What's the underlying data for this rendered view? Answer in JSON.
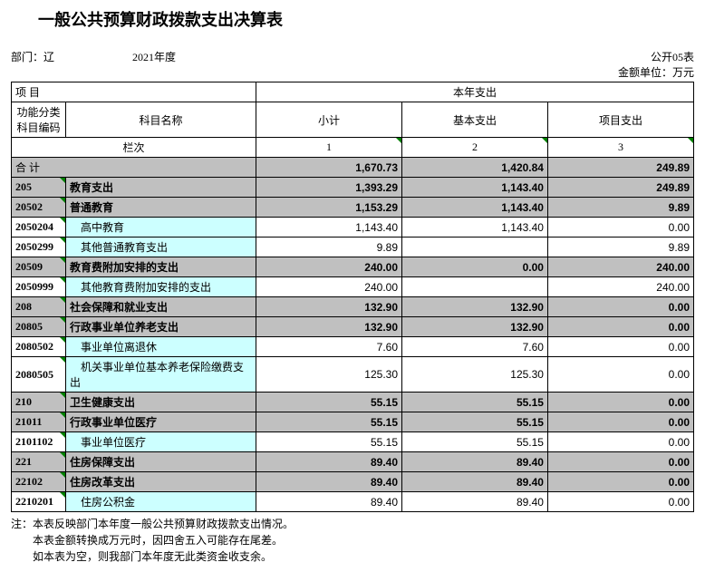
{
  "title": "一般公共预算财政拨款支出决算表",
  "form_number": "公开05表",
  "dept_label": "部门：辽",
  "year_label": "2021年度",
  "unit_label": "金额单位：万元",
  "headers": {
    "xiangmu": "项                                                                               目",
    "benian": "本年支出",
    "func_code": "功能分类科目编码",
    "name": "科目名称",
    "subtotal": "小计",
    "basic": "基本支出",
    "project": "项目支出",
    "lanci": "栏次",
    "col1": "1",
    "col2": "2",
    "col3": "3",
    "heji": "合                                                                               计"
  },
  "rows": [
    {
      "code": "",
      "name": "",
      "subtotal": "1,670.73",
      "basic": "1,420.84",
      "project": "249.89",
      "type": "total"
    },
    {
      "code": "205",
      "name": "教育支出",
      "subtotal": "1,393.29",
      "basic": "1,143.40",
      "project": "249.89",
      "type": "cat"
    },
    {
      "code": "20502",
      "name": "普通教育",
      "subtotal": "1,153.29",
      "basic": "1,143.40",
      "project": "9.89",
      "type": "cat"
    },
    {
      "code": "2050204",
      "name": "　高中教育",
      "subtotal": "1,143.40",
      "basic": "1,143.40",
      "project": "0.00",
      "type": "item"
    },
    {
      "code": "2050299",
      "name": "　其他普通教育支出",
      "subtotal": "9.89",
      "basic": "",
      "project": "9.89",
      "type": "item"
    },
    {
      "code": "20509",
      "name": "教育费附加安排的支出",
      "subtotal": "240.00",
      "basic": "0.00",
      "project": "240.00",
      "type": "cat"
    },
    {
      "code": "2050999",
      "name": "　其他教育费附加安排的支出",
      "subtotal": "240.00",
      "basic": "",
      "project": "240.00",
      "type": "item"
    },
    {
      "code": "208",
      "name": "社会保障和就业支出",
      "subtotal": "132.90",
      "basic": "132.90",
      "project": "0.00",
      "type": "cat"
    },
    {
      "code": "20805",
      "name": "行政事业单位养老支出",
      "subtotal": "132.90",
      "basic": "132.90",
      "project": "0.00",
      "type": "cat"
    },
    {
      "code": "2080502",
      "name": "　事业单位离退休",
      "subtotal": "7.60",
      "basic": "7.60",
      "project": "0.00",
      "type": "item"
    },
    {
      "code": "2080505",
      "name": "　机关事业单位基本养老保险缴费支出",
      "subtotal": "125.30",
      "basic": "125.30",
      "project": "0.00",
      "type": "item"
    },
    {
      "code": "210",
      "name": "卫生健康支出",
      "subtotal": "55.15",
      "basic": "55.15",
      "project": "0.00",
      "type": "cat"
    },
    {
      "code": "21011",
      "name": "行政事业单位医疗",
      "subtotal": "55.15",
      "basic": "55.15",
      "project": "0.00",
      "type": "cat"
    },
    {
      "code": "2101102",
      "name": "　事业单位医疗",
      "subtotal": "55.15",
      "basic": "55.15",
      "project": "0.00",
      "type": "item"
    },
    {
      "code": "221",
      "name": "住房保障支出",
      "subtotal": "89.40",
      "basic": "89.40",
      "project": "0.00",
      "type": "cat"
    },
    {
      "code": "22102",
      "name": "住房改革支出",
      "subtotal": "89.40",
      "basic": "89.40",
      "project": "0.00",
      "type": "cat"
    },
    {
      "code": "2210201",
      "name": "　住房公积金",
      "subtotal": "89.40",
      "basic": "89.40",
      "project": "0.00",
      "type": "item"
    }
  ],
  "notes": [
    "注：本表反映部门本年度一般公共预算财政拨款支出情况。",
    "　　本表金额转换成万元时，因四舍五入可能存在尾差。",
    "　　如本表为空，则我部门本年度无此类资金收支余。"
  ]
}
